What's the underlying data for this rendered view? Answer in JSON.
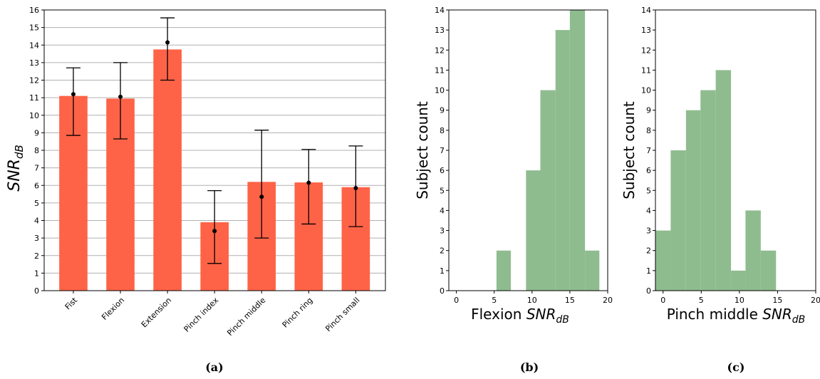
{
  "chart_data": [
    {
      "type": "bar",
      "panel": "(a)",
      "ylabel_main": "SNR",
      "ylabel_sub": "dB",
      "ylim": [
        0,
        16
      ],
      "yticks": [
        0,
        1,
        2,
        3,
        4,
        5,
        6,
        7,
        8,
        9,
        10,
        11,
        12,
        13,
        14,
        15,
        16
      ],
      "grid": "horizontal",
      "bar_color": "#ff6347",
      "categories": [
        "Fist",
        "Flexion",
        "Extension",
        "Pinch index",
        "Pinch middle",
        "Pinch ring",
        "Pinch small"
      ],
      "values": [
        11.1,
        10.95,
        13.75,
        3.9,
        6.2,
        6.17,
        5.9
      ],
      "points": [
        11.2,
        11.05,
        14.15,
        3.4,
        5.35,
        6.15,
        5.85
      ],
      "err_low": [
        8.85,
        8.65,
        12.0,
        1.55,
        3.0,
        3.8,
        3.65
      ],
      "err_high": [
        12.7,
        13.0,
        15.55,
        5.7,
        9.15,
        8.05,
        8.25
      ]
    },
    {
      "type": "histogram",
      "panel": "(b)",
      "xlabel_main": "Flexion ",
      "xlabel_italic": "SNR",
      "xlabel_sub": "dB",
      "ylabel": "Subject count",
      "xlim": [
        -1,
        20
      ],
      "ylim": [
        0,
        14
      ],
      "xticks": [
        0,
        5,
        10,
        15,
        20
      ],
      "yticks": [
        0,
        1,
        2,
        3,
        4,
        5,
        6,
        7,
        8,
        9,
        10,
        11,
        12,
        13,
        14
      ],
      "bar_color": "#8fbc8f",
      "bin_edges": [
        5.3,
        7.2,
        9.2,
        11.1,
        13.1,
        15.0,
        17.0,
        18.9
      ],
      "counts": [
        2,
        0,
        6,
        10,
        13,
        14,
        2
      ]
    },
    {
      "type": "histogram",
      "panel": "(c)",
      "xlabel_main": "Pinch middle ",
      "xlabel_italic": "SNR",
      "xlabel_sub": "dB",
      "ylabel": "Subject count",
      "xlim": [
        -1,
        20
      ],
      "ylim": [
        0,
        14
      ],
      "xticks": [
        0,
        5,
        10,
        15,
        20
      ],
      "yticks": [
        0,
        1,
        2,
        3,
        4,
        5,
        6,
        7,
        8,
        9,
        10,
        11,
        12,
        13,
        14
      ],
      "bar_color": "#8fbc8f",
      "bin_edges": [
        -1.0,
        1.0,
        3.0,
        4.9,
        6.9,
        8.9,
        10.8,
        12.8,
        14.8
      ],
      "counts": [
        3,
        7,
        9,
        10,
        11,
        1,
        4,
        2
      ]
    }
  ]
}
